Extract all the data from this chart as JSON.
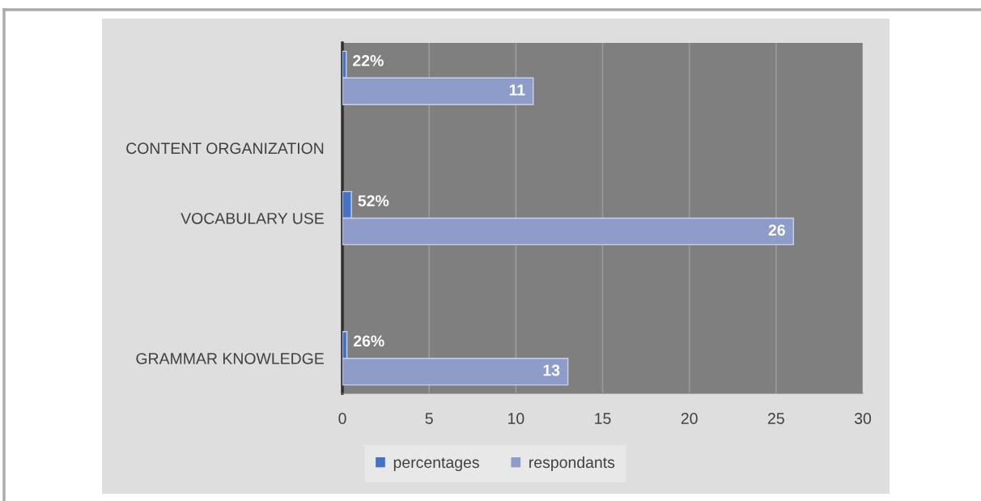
{
  "chart_data": {
    "type": "bar",
    "orientation": "horizontal",
    "categories": [
      null,
      "CONTENT ORGANIZATION",
      "VOCABULARY USE",
      null,
      "GRAMMAR KNOWLEDGE"
    ],
    "series": [
      {
        "name": "percentages",
        "color": "#4472c4",
        "values": [
          0.22,
          null,
          0.52,
          null,
          0.26
        ],
        "value_labels": [
          "22%",
          null,
          "52%",
          null,
          "26%"
        ]
      },
      {
        "name": "respondants",
        "color": "#8e9cc9",
        "values": [
          11,
          null,
          26,
          null,
          13
        ],
        "value_labels": [
          "11",
          null,
          "26",
          null,
          "13"
        ]
      }
    ],
    "xlim": [
      0,
      30
    ],
    "xticks": [
      0,
      5,
      10,
      15,
      20,
      25,
      30
    ],
    "grid": "x",
    "legend": "bottom"
  }
}
